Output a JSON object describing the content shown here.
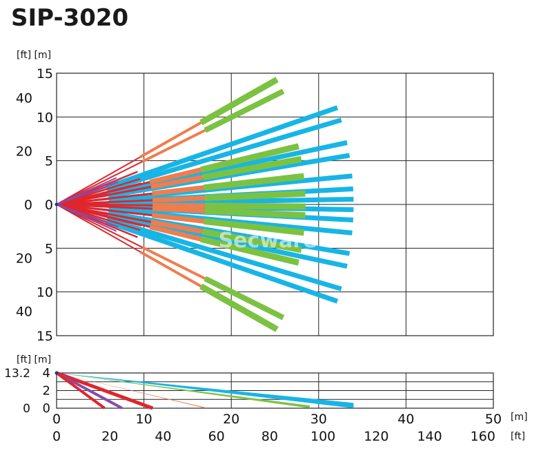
{
  "header": {
    "title": "SIP-3020"
  },
  "watermark": "Secware",
  "top_view": {
    "unit_ft": "[ft]",
    "unit_m": "[m]",
    "m_ticks": [
      {
        "v": 15,
        "label": "15"
      },
      {
        "v": 10,
        "label": "10"
      },
      {
        "v": 5,
        "label": "5"
      },
      {
        "v": 0,
        "label": "0"
      },
      {
        "v": -5,
        "label": "5"
      },
      {
        "v": -10,
        "label": "10"
      },
      {
        "v": -15,
        "label": "15"
      }
    ],
    "ft_ticks": [
      {
        "v": 12.2,
        "label": "40"
      },
      {
        "v": 6.1,
        "label": "20"
      },
      {
        "v": 0,
        "label": "0"
      },
      {
        "v": -6.1,
        "label": "20"
      },
      {
        "v": -12.2,
        "label": "40"
      }
    ]
  },
  "side_view": {
    "unit_ft": "[ft]",
    "unit_m": "[m]",
    "m_ticks": [
      {
        "v": 4,
        "label": "4"
      },
      {
        "v": 2,
        "label": "2"
      },
      {
        "v": 0,
        "label": "0"
      }
    ],
    "ft_ticks": [
      {
        "v": 4,
        "label": "13.2"
      },
      {
        "v": 0,
        "label": "0"
      }
    ]
  },
  "x_axis": {
    "unit_m": "[m]",
    "unit_ft": "[ft]",
    "m_ticks": [
      {
        "v": 0,
        "label": "0"
      },
      {
        "v": 10,
        "label": "10"
      },
      {
        "v": 20,
        "label": "20"
      },
      {
        "v": 30,
        "label": "30"
      },
      {
        "v": 40,
        "label": "40"
      },
      {
        "v": 50,
        "label": "50"
      }
    ],
    "ft_ticks": [
      {
        "v": 0,
        "label": "0"
      },
      {
        "v": 6.1,
        "label": "20"
      },
      {
        "v": 12.2,
        "label": "40"
      },
      {
        "v": 18.3,
        "label": "60"
      },
      {
        "v": 24.4,
        "label": "80"
      },
      {
        "v": 30.5,
        "label": "100"
      },
      {
        "v": 36.6,
        "label": "120"
      },
      {
        "v": 42.7,
        "label": "140"
      },
      {
        "v": 48.8,
        "label": "160"
      }
    ]
  },
  "colors": {
    "red": "#e0262b",
    "purple": "#8a4aa8",
    "orange": "#ef7d4d",
    "green": "#7cc242",
    "blue": "#17b5e6",
    "grid": "#222222"
  }
}
